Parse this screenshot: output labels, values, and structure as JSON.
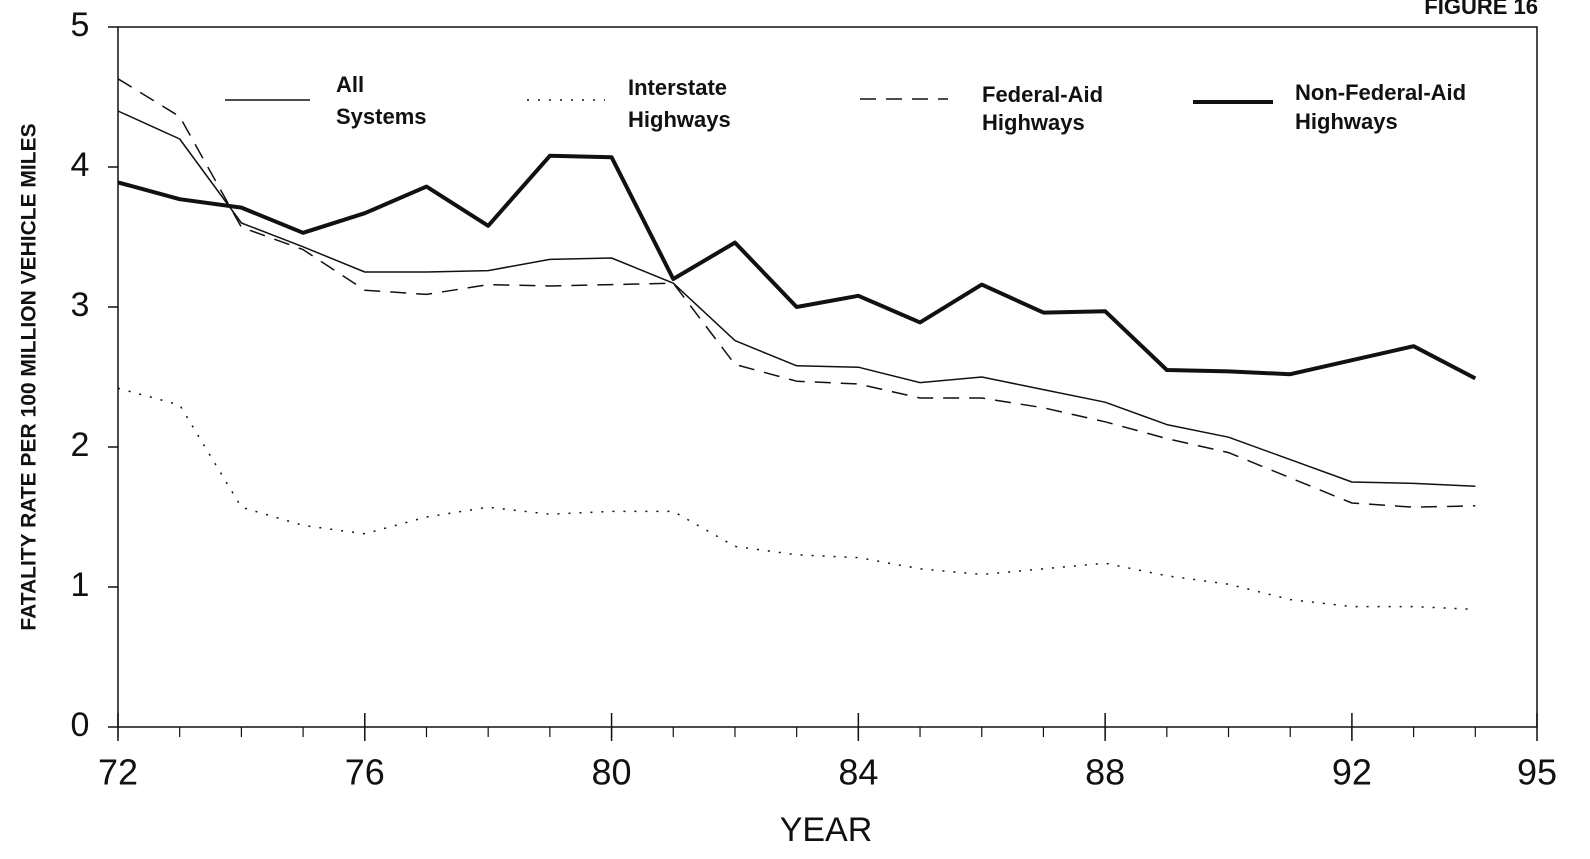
{
  "chart_data": {
    "type": "line",
    "title": "FIGURE 16",
    "xlabel": "YEAR",
    "ylabel": "FATALITY RATE PER 100 MILLION VEHICLE MILES",
    "x": [
      72,
      73,
      74,
      75,
      76,
      77,
      78,
      79,
      80,
      81,
      82,
      83,
      84,
      85,
      86,
      87,
      88,
      89,
      90,
      91,
      92,
      93,
      94
    ],
    "series": [
      {
        "name": "All Systems",
        "color": "#111111",
        "dash": "solid",
        "width": 1.5,
        "values": [
          4.4,
          4.2,
          3.6,
          3.43,
          3.25,
          3.25,
          3.26,
          3.34,
          3.35,
          3.17,
          2.76,
          2.58,
          2.57,
          2.46,
          2.5,
          2.41,
          2.32,
          2.16,
          2.07,
          1.91,
          1.75,
          1.74,
          1.72
        ]
      },
      {
        "name": "Interstate Highways",
        "color": "#111111",
        "dash": "dotted",
        "width": 1.5,
        "values": [
          2.42,
          2.3,
          1.57,
          1.44,
          1.38,
          1.5,
          1.57,
          1.52,
          1.54,
          1.54,
          1.29,
          1.23,
          1.21,
          1.13,
          1.09,
          1.13,
          1.17,
          1.08,
          1.02,
          0.91,
          0.86,
          0.86,
          0.84
        ]
      },
      {
        "name": "Federal-Aid Highways",
        "color": "#111111",
        "dash": "dashed",
        "width": 1.5,
        "values": [
          4.63,
          4.36,
          3.57,
          3.41,
          3.12,
          3.09,
          3.16,
          3.15,
          3.16,
          3.17,
          2.59,
          2.47,
          2.45,
          2.35,
          2.35,
          2.28,
          2.18,
          2.06,
          1.96,
          1.78,
          1.6,
          1.57,
          1.58
        ]
      },
      {
        "name": "Non-Federal-Aid Highways",
        "color": "#111111",
        "dash": "solid",
        "width": 4,
        "values": [
          3.89,
          3.77,
          3.71,
          3.53,
          3.67,
          3.86,
          3.58,
          4.08,
          4.07,
          3.2,
          3.46,
          3.0,
          3.08,
          2.89,
          3.16,
          2.96,
          2.97,
          2.55,
          2.54,
          2.52,
          2.62,
          2.72,
          2.49
        ]
      }
    ],
    "xlim": [
      72,
      95
    ],
    "xticks": [
      72,
      76,
      80,
      84,
      88,
      92,
      95
    ],
    "ylim": [
      0,
      5
    ],
    "yticks": [
      0,
      1,
      2,
      3,
      4,
      5
    ],
    "grid": false
  }
}
